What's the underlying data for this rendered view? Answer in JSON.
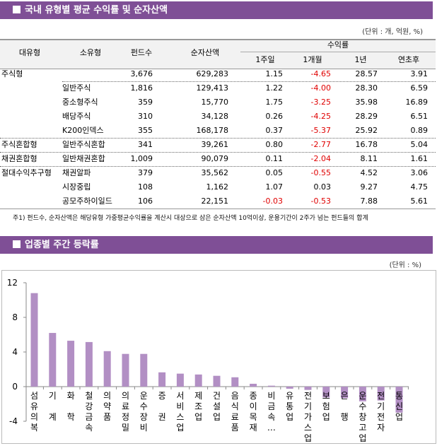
{
  "section1": {
    "title": "국내 유형별 평균 수익률 및 순자산액",
    "unit": "(단위 : 개, 억원, %)",
    "headers": {
      "major": "대유형",
      "minor": "소유형",
      "funds": "펀드수",
      "assets": "순자산액",
      "returns": "수익률",
      "w1": "1주일",
      "m1": "1개월",
      "y1": "1년",
      "ytd": "연초후"
    },
    "rows": [
      {
        "major": "주식형",
        "minor": "",
        "funds": "3,676",
        "assets": "629,283",
        "w1": "1.15",
        "m1": "-4.65",
        "y1": "28.57",
        "ytd": "3.91"
      },
      {
        "major": "",
        "minor": "일반주식",
        "funds": "1,816",
        "assets": "129,413",
        "w1": "1.22",
        "m1": "-4.00",
        "y1": "28.30",
        "ytd": "6.59"
      },
      {
        "major": "",
        "minor": "중소형주식",
        "funds": "359",
        "assets": "15,770",
        "w1": "1.75",
        "m1": "-3.25",
        "y1": "35.98",
        "ytd": "16.89"
      },
      {
        "major": "",
        "minor": "배당주식",
        "funds": "310",
        "assets": "34,128",
        "w1": "0.26",
        "m1": "-4.25",
        "y1": "28.29",
        "ytd": "6.51"
      },
      {
        "major": "",
        "minor": "K200인덱스",
        "funds": "355",
        "assets": "168,178",
        "w1": "0.37",
        "m1": "-5.37",
        "y1": "25.92",
        "ytd": "0.89"
      },
      {
        "major": "주식혼합형",
        "minor": "일반주식혼합",
        "funds": "341",
        "assets": "39,261",
        "w1": "0.80",
        "m1": "-2.77",
        "y1": "16.78",
        "ytd": "5.04"
      },
      {
        "major": "채권혼합형",
        "minor": "일반채권혼합",
        "funds": "1,009",
        "assets": "90,079",
        "w1": "0.11",
        "m1": "-2.04",
        "y1": "8.11",
        "ytd": "1.61"
      },
      {
        "major": "절대수익추구형",
        "minor": "채권알파",
        "funds": "379",
        "assets": "35,562",
        "w1": "0.05",
        "m1": "-0.55",
        "y1": "4.52",
        "ytd": "3.06"
      },
      {
        "major": "",
        "minor": "시장중립",
        "funds": "108",
        "assets": "1,162",
        "w1": "1.07",
        "m1": "0.03",
        "y1": "9.27",
        "ytd": "4.75"
      },
      {
        "major": "",
        "minor": "공모주하이일드",
        "funds": "106",
        "assets": "22,151",
        "w1": "-0.03",
        "m1": "-0.53",
        "y1": "7.88",
        "ytd": "5.61"
      }
    ],
    "note": "주1) 펀드수, 순자산액은 해당유형 가중평균수익률을 계산시 대상으로 삼은 순자산액 10억이상, 운용기간이 2주가 넘는 펀드들의 합계"
  },
  "section2": {
    "title": "업종별 주간 등락률",
    "unit": "(단위 : %)"
  },
  "colors": {
    "header": "#7f4f96",
    "bar": "#b28fc4",
    "negative": "#e00000"
  },
  "chart_data": {
    "type": "bar",
    "categories": [
      "섬유의복",
      "기 계",
      "화 학",
      "철강금속",
      "의약품",
      "의료정밀",
      "운수장비",
      "증 권",
      "서비스업",
      "제조업",
      "건설업",
      "음식료품",
      "종이목재",
      "비금속…",
      "유통업",
      "전기가스업",
      "보험업",
      "은 행",
      "운수창고업",
      "전기전자",
      "통신업"
    ],
    "values": [
      10.8,
      6.2,
      5.3,
      5.15,
      4.1,
      3.78,
      3.78,
      1.65,
      1.5,
      1.4,
      1.25,
      1.08,
      0.33,
      0.11,
      -0.24,
      -0.38,
      -1.25,
      -1.33,
      -1.7,
      -1.6,
      -3.0
    ],
    "ylim": [
      -4,
      12
    ],
    "yticks": [
      "12",
      "8",
      "4",
      "0",
      "-4"
    ],
    "grid": false
  }
}
